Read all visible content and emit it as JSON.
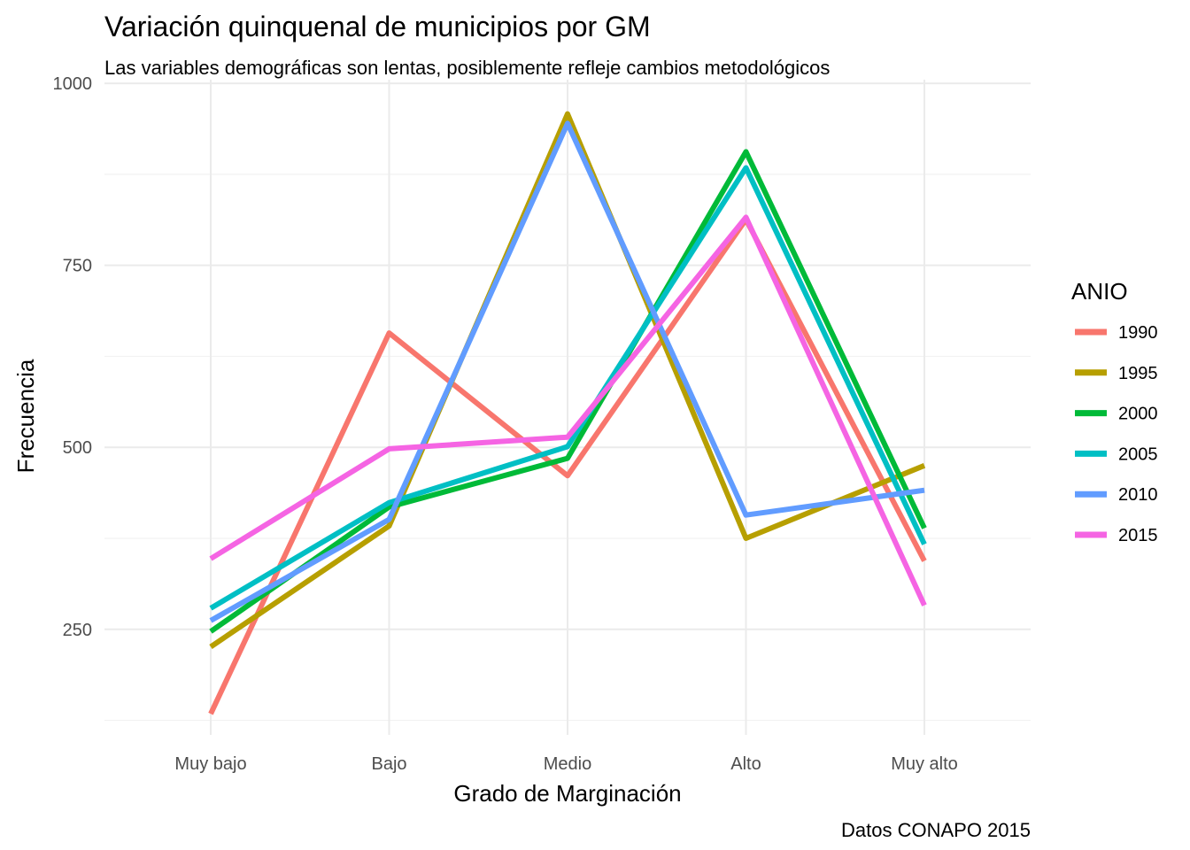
{
  "chart_data": {
    "type": "line",
    "title": "Variación quinquenal de municipios por GM",
    "subtitle": "Las variables demográficas son lentas, posiblemente refleje cambios metodológicos",
    "caption": "Datos CONAPO 2015",
    "xlabel": "Grado de Marginación",
    "ylabel": "Frecuencia",
    "categories": [
      "Muy bajo",
      "Bajo",
      "Medio",
      "Alto",
      "Muy alto"
    ],
    "ylim": [
      105,
      1005
    ],
    "yticks": [
      250,
      500,
      750,
      1000
    ],
    "ytick_labels": [
      "250",
      "500",
      "750",
      "1000"
    ],
    "grid": true,
    "legend": {
      "title": "ANIO",
      "position": "right"
    },
    "series": [
      {
        "name": "1990",
        "color": "#F8766D",
        "values": [
          134,
          657,
          461,
          813,
          344
        ]
      },
      {
        "name": "1995",
        "color": "#B79F00",
        "values": [
          226,
          392,
          958,
          375,
          475
        ]
      },
      {
        "name": "2000",
        "color": "#00BA38",
        "values": [
          247,
          418,
          485,
          906,
          389
        ]
      },
      {
        "name": "2005",
        "color": "#00BFC4",
        "values": [
          279,
          424,
          501,
          884,
          367
        ]
      },
      {
        "name": "2010",
        "color": "#619CFF",
        "values": [
          262,
          401,
          945,
          407,
          441
        ]
      },
      {
        "name": "2015",
        "color": "#F564E3",
        "values": [
          347,
          498,
          514,
          816,
          283
        ]
      }
    ]
  }
}
